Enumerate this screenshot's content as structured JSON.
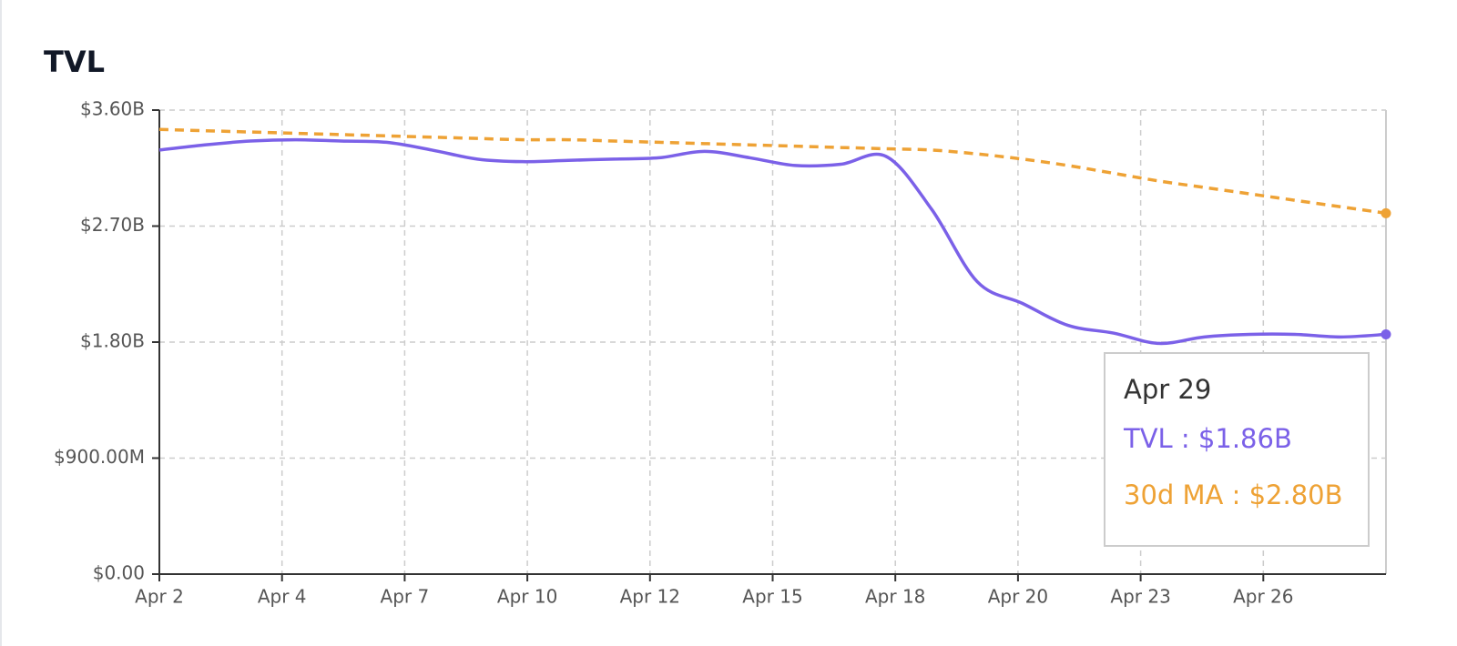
{
  "chart_data": {
    "type": "line",
    "title": "TVL",
    "xticks": [
      "Apr 2",
      "Apr 4",
      "Apr 7",
      "Apr 10",
      "Apr 12",
      "Apr 15",
      "Apr 18",
      "Apr 20",
      "Apr 23",
      "Apr 26"
    ],
    "ylim": [
      0,
      3600000000
    ],
    "yticks": [
      {
        "value": 0,
        "label": "$0.00"
      },
      {
        "value": 900000000,
        "label": "$900.00M"
      },
      {
        "value": 1800000000,
        "label": "$1.80B"
      },
      {
        "value": 2700000000,
        "label": "$2.70B"
      },
      {
        "value": 3600000000,
        "label": "$3.60B"
      }
    ],
    "grid": true,
    "series": [
      {
        "name": "TVL",
        "color": "#7b61e8",
        "dashed": false,
        "values": [
          3290000000,
          3330000000,
          3360000000,
          3370000000,
          3360000000,
          3350000000,
          3290000000,
          3220000000,
          3200000000,
          3210000000,
          3220000000,
          3230000000,
          3280000000,
          3230000000,
          3170000000,
          3180000000,
          3240000000,
          2830000000,
          2270000000,
          2100000000,
          1930000000,
          1870000000,
          1790000000,
          1840000000,
          1860000000,
          1860000000,
          1840000000,
          1860000000
        ]
      },
      {
        "name": "30d MA",
        "color": "#eea235",
        "dashed": true,
        "values": [
          3450000000,
          3440000000,
          3430000000,
          3420000000,
          3410000000,
          3400000000,
          3390000000,
          3380000000,
          3370000000,
          3370000000,
          3360000000,
          3350000000,
          3340000000,
          3330000000,
          3320000000,
          3310000000,
          3300000000,
          3290000000,
          3260000000,
          3220000000,
          3170000000,
          3110000000,
          3050000000,
          3000000000,
          2950000000,
          2900000000,
          2850000000,
          2800000000
        ]
      }
    ],
    "tooltip": {
      "title": "Apr 29",
      "lines": [
        "TVL : $1.86B",
        "30d MA : $2.80B"
      ]
    }
  }
}
